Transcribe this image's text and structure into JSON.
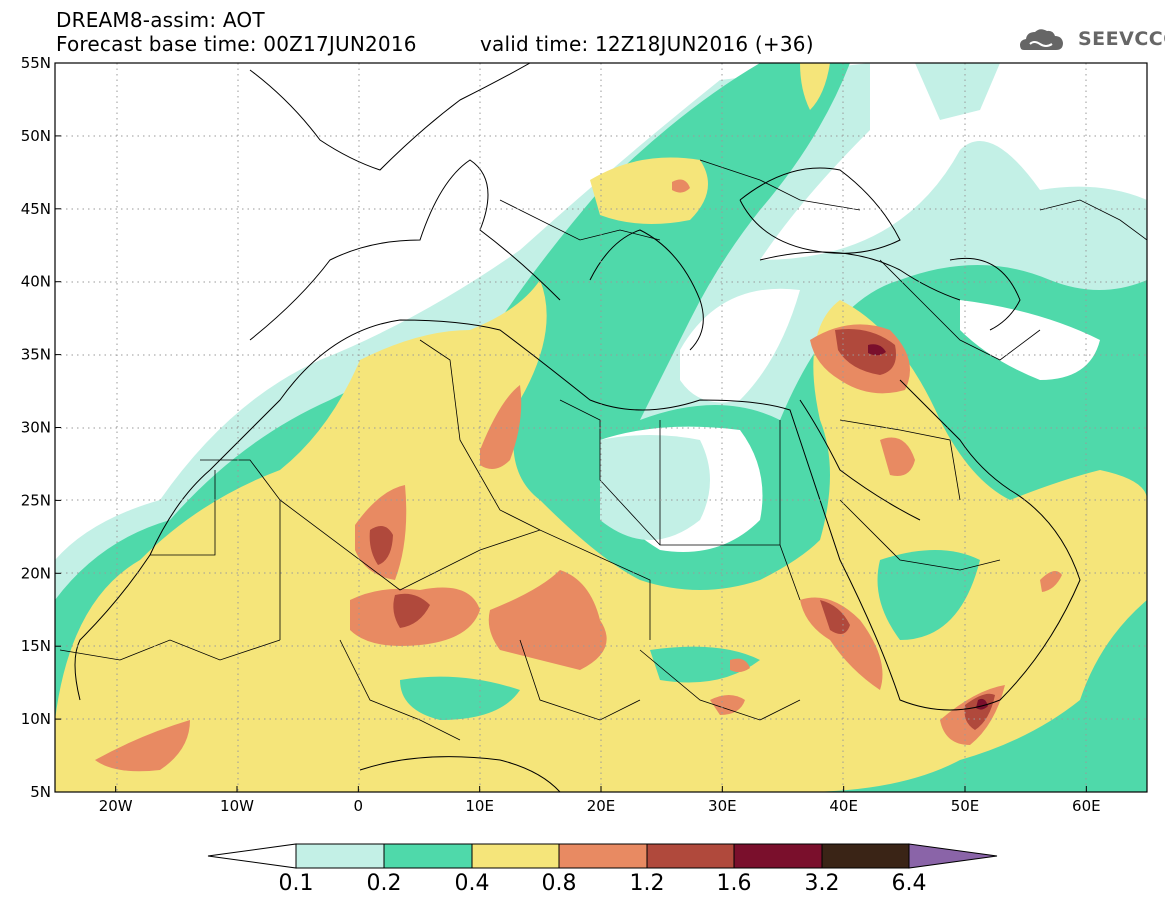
{
  "header": {
    "line1": "DREAM8-assim: AOT",
    "line2": "Forecast base time: 00Z17JUN2016",
    "line3": "valid time: 12Z18JUN2016 (+36)"
  },
  "logo": {
    "text": "SEEVCCC",
    "icon": "cloud-icon"
  },
  "map": {
    "lon_ticks": [
      "20W",
      "10W",
      "0",
      "10E",
      "20E",
      "30E",
      "40E",
      "50E",
      "60E"
    ],
    "lat_ticks": [
      "55N",
      "50N",
      "45N",
      "40N",
      "35N",
      "30N",
      "25N",
      "20N",
      "15N",
      "10N",
      "5N"
    ],
    "lon_range": [
      -25,
      65
    ],
    "lat_range": [
      5,
      55
    ],
    "grid": "dotted"
  },
  "colorbar": {
    "labels": [
      "0.1",
      "0.2",
      "0.4",
      "0.8",
      "1.2",
      "1.6",
      "3.2",
      "6.4"
    ],
    "colors": [
      "#ffffff",
      "#c3f0e6",
      "#4fd9aa",
      "#f5e57a",
      "#e88a62",
      "#b0493c",
      "#7a0f2c",
      "#3a2416",
      "#8a64a8"
    ]
  },
  "chart_data": {
    "type": "heatmap",
    "title": "DREAM8-assim: AOT",
    "xlim": [
      -25,
      65
    ],
    "ylim": [
      5,
      55
    ],
    "levels": [
      0.1,
      0.2,
      0.4,
      0.8,
      1.2,
      1.6,
      3.2,
      6.4
    ]
  }
}
